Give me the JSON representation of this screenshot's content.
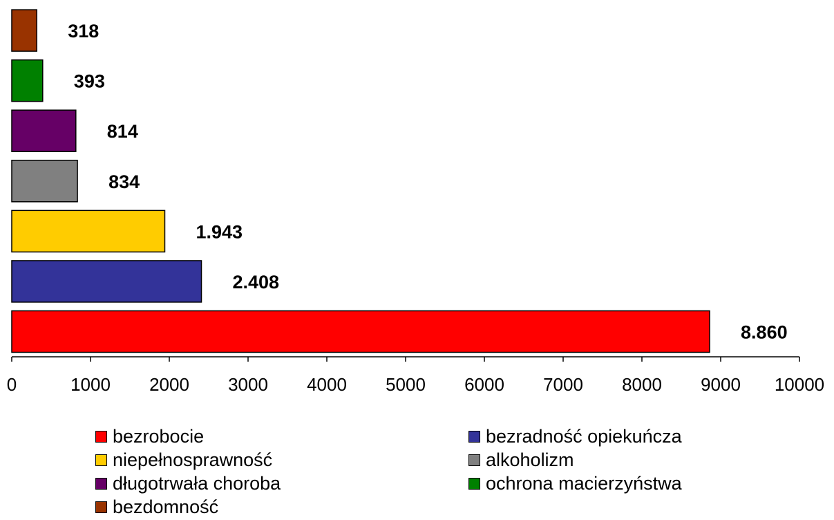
{
  "chart_data": {
    "type": "bar",
    "orientation": "horizontal",
    "categories": [
      "bezrobocie",
      "bezradność opiekuńcza",
      "niepełnosprawność",
      "alkoholizm",
      "długotrwała choroba",
      "ochrona macierzyństwa",
      "bezdomność"
    ],
    "values": [
      8860,
      2408,
      1943,
      834,
      814,
      393,
      318
    ],
    "value_labels": [
      "8.860",
      "2.408",
      "1.943",
      "834",
      "814",
      "393",
      "318"
    ],
    "colors": [
      "#ff0000",
      "#333399",
      "#ffcc00",
      "#808080",
      "#660066",
      "#008000",
      "#993300"
    ],
    "xlim": [
      0,
      10000
    ],
    "x_ticks": [
      0,
      1000,
      2000,
      3000,
      4000,
      5000,
      6000,
      7000,
      8000,
      9000,
      10000
    ],
    "x_tick_labels": [
      "0",
      "1000",
      "2000",
      "3000",
      "4000",
      "5000",
      "6000",
      "7000",
      "8000",
      "9000",
      "10000"
    ],
    "grid": false,
    "title": "",
    "xlabel": "",
    "ylabel": "",
    "legend_position": "bottom"
  }
}
